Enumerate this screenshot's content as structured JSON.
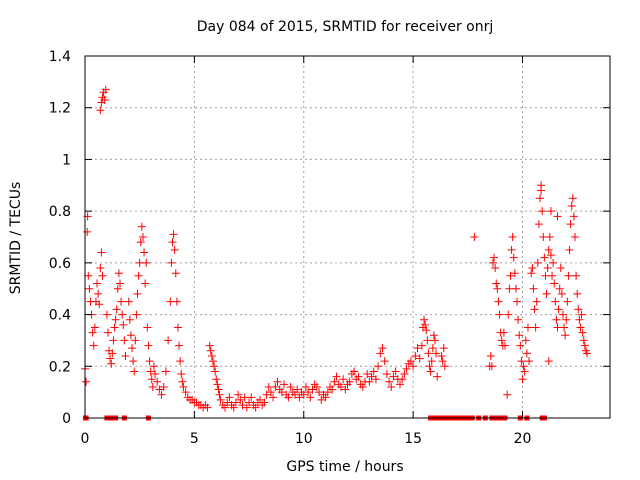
{
  "chart_data": {
    "type": "scatter",
    "title": "Day 084 of 2015, SRMTID for receiver onrj",
    "xlabel": "GPS time / hours",
    "ylabel": "SRMTID / TECUs",
    "xlim": [
      0,
      24
    ],
    "ylim": [
      0,
      1.4
    ],
    "x_ticks": [
      0,
      5,
      10,
      15,
      20
    ],
    "x_tick_labels": [
      "0",
      "5",
      "10",
      "15",
      "20"
    ],
    "y_ticks": [
      0,
      0.2,
      0.4,
      0.6,
      0.8,
      1.0,
      1.2,
      1.4
    ],
    "y_tick_labels": [
      "0",
      "0.2",
      "0.4",
      "0.6",
      "0.8",
      "1",
      "1.2",
      "1.4"
    ],
    "grid": true,
    "marker": "+",
    "color": "#ff0000",
    "series": [
      {
        "name": "SRMTID",
        "points": [
          [
            0.0,
            0.19
          ],
          [
            0.05,
            0.14
          ],
          [
            0.1,
            0.72
          ],
          [
            0.12,
            0.78
          ],
          [
            0.15,
            0.55
          ],
          [
            0.2,
            0.5
          ],
          [
            0.25,
            0.45
          ],
          [
            0.3,
            0.4
          ],
          [
            0.35,
            0.33
          ],
          [
            0.4,
            0.28
          ],
          [
            0.45,
            0.35
          ],
          [
            0.5,
            0.45
          ],
          [
            0.55,
            0.52
          ],
          [
            0.6,
            0.48
          ],
          [
            0.65,
            0.44
          ],
          [
            0.7,
            0.58
          ],
          [
            0.75,
            0.64
          ],
          [
            0.8,
            0.55
          ],
          [
            0.7,
            1.19
          ],
          [
            0.75,
            1.22
          ],
          [
            0.8,
            1.24
          ],
          [
            0.85,
            1.26
          ],
          [
            0.9,
            1.23
          ],
          [
            0.95,
            1.27
          ],
          [
            1.0,
            0.4
          ],
          [
            1.05,
            0.33
          ],
          [
            1.1,
            0.26
          ],
          [
            1.15,
            0.23
          ],
          [
            1.2,
            0.21
          ],
          [
            1.25,
            0.25
          ],
          [
            1.3,
            0.3
          ],
          [
            1.35,
            0.35
          ],
          [
            1.4,
            0.38
          ],
          [
            1.45,
            0.42
          ],
          [
            1.5,
            0.5
          ],
          [
            1.55,
            0.56
          ],
          [
            1.6,
            0.52
          ],
          [
            1.65,
            0.45
          ],
          [
            1.7,
            0.4
          ],
          [
            1.75,
            0.36
          ],
          [
            1.8,
            0.3
          ],
          [
            1.85,
            0.24
          ],
          [
            2.0,
            0.45
          ],
          [
            2.05,
            0.38
          ],
          [
            2.1,
            0.32
          ],
          [
            2.15,
            0.27
          ],
          [
            2.2,
            0.22
          ],
          [
            2.25,
            0.18
          ],
          [
            2.3,
            0.3
          ],
          [
            2.35,
            0.4
          ],
          [
            2.4,
            0.48
          ],
          [
            2.45,
            0.55
          ],
          [
            2.5,
            0.6
          ],
          [
            2.55,
            0.68
          ],
          [
            2.6,
            0.74
          ],
          [
            2.65,
            0.7
          ],
          [
            2.7,
            0.64
          ],
          [
            2.75,
            0.52
          ],
          [
            2.8,
            0.6
          ],
          [
            2.85,
            0.35
          ],
          [
            2.9,
            0.28
          ],
          [
            2.95,
            0.22
          ],
          [
            3.0,
            0.18
          ],
          [
            3.05,
            0.15
          ],
          [
            3.1,
            0.12
          ],
          [
            3.15,
            0.2
          ],
          [
            3.2,
            0.17
          ],
          [
            3.3,
            0.14
          ],
          [
            3.4,
            0.11
          ],
          [
            3.5,
            0.09
          ],
          [
            3.6,
            0.12
          ],
          [
            3.7,
            0.18
          ],
          [
            3.8,
            0.3
          ],
          [
            3.9,
            0.45
          ],
          [
            3.95,
            0.6
          ],
          [
            4.0,
            0.68
          ],
          [
            4.05,
            0.71
          ],
          [
            4.1,
            0.65
          ],
          [
            4.15,
            0.56
          ],
          [
            4.2,
            0.45
          ],
          [
            4.25,
            0.35
          ],
          [
            4.3,
            0.28
          ],
          [
            4.35,
            0.22
          ],
          [
            4.4,
            0.17
          ],
          [
            4.45,
            0.14
          ],
          [
            4.5,
            0.12
          ],
          [
            4.6,
            0.1
          ],
          [
            4.7,
            0.08
          ],
          [
            4.8,
            0.07
          ],
          [
            4.9,
            0.07
          ],
          [
            5.0,
            0.06
          ],
          [
            5.1,
            0.06
          ],
          [
            5.2,
            0.05
          ],
          [
            5.3,
            0.05
          ],
          [
            5.4,
            0.04
          ],
          [
            5.5,
            0.05
          ],
          [
            5.6,
            0.04
          ],
          [
            5.7,
            0.28
          ],
          [
            5.75,
            0.26
          ],
          [
            5.8,
            0.24
          ],
          [
            5.85,
            0.22
          ],
          [
            5.9,
            0.2
          ],
          [
            5.95,
            0.18
          ],
          [
            6.0,
            0.15
          ],
          [
            6.05,
            0.13
          ],
          [
            6.1,
            0.11
          ],
          [
            6.15,
            0.09
          ],
          [
            6.2,
            0.07
          ],
          [
            6.3,
            0.05
          ],
          [
            6.4,
            0.04
          ],
          [
            6.5,
            0.06
          ],
          [
            6.6,
            0.08
          ],
          [
            6.7,
            0.05
          ],
          [
            6.8,
            0.04
          ],
          [
            6.9,
            0.06
          ],
          [
            7.0,
            0.09
          ],
          [
            7.1,
            0.07
          ],
          [
            7.2,
            0.05
          ],
          [
            7.3,
            0.08
          ],
          [
            7.4,
            0.04
          ],
          [
            7.5,
            0.06
          ],
          [
            7.6,
            0.08
          ],
          [
            7.7,
            0.05
          ],
          [
            7.8,
            0.04
          ],
          [
            7.9,
            0.06
          ],
          [
            8.0,
            0.07
          ],
          [
            8.1,
            0.05
          ],
          [
            8.2,
            0.06
          ],
          [
            8.3,
            0.09
          ],
          [
            8.4,
            0.12
          ],
          [
            8.5,
            0.1
          ],
          [
            8.6,
            0.08
          ],
          [
            8.7,
            0.12
          ],
          [
            8.8,
            0.14
          ],
          [
            8.9,
            0.11
          ],
          [
            9.0,
            0.1
          ],
          [
            9.1,
            0.13
          ],
          [
            9.2,
            0.09
          ],
          [
            9.3,
            0.08
          ],
          [
            9.4,
            0.12
          ],
          [
            9.5,
            0.1
          ],
          [
            9.6,
            0.09
          ],
          [
            9.7,
            0.11
          ],
          [
            9.8,
            0.08
          ],
          [
            9.9,
            0.1
          ],
          [
            10.0,
            0.09
          ],
          [
            10.1,
            0.12
          ],
          [
            10.2,
            0.1
          ],
          [
            10.3,
            0.08
          ],
          [
            10.4,
            0.11
          ],
          [
            10.5,
            0.13
          ],
          [
            10.6,
            0.12
          ],
          [
            10.7,
            0.1
          ],
          [
            10.8,
            0.07
          ],
          [
            10.9,
            0.09
          ],
          [
            11.0,
            0.08
          ],
          [
            11.1,
            0.1
          ],
          [
            11.2,
            0.12
          ],
          [
            11.3,
            0.11
          ],
          [
            11.4,
            0.14
          ],
          [
            11.5,
            0.16
          ],
          [
            11.6,
            0.13
          ],
          [
            11.7,
            0.12
          ],
          [
            11.8,
            0.15
          ],
          [
            11.9,
            0.11
          ],
          [
            12.0,
            0.13
          ],
          [
            12.1,
            0.14
          ],
          [
            12.2,
            0.17
          ],
          [
            12.3,
            0.18
          ],
          [
            12.4,
            0.15
          ],
          [
            12.5,
            0.16
          ],
          [
            12.6,
            0.13
          ],
          [
            12.7,
            0.12
          ],
          [
            12.8,
            0.14
          ],
          [
            12.9,
            0.17
          ],
          [
            13.0,
            0.14
          ],
          [
            13.1,
            0.16
          ],
          [
            13.2,
            0.18
          ],
          [
            13.3,
            0.15
          ],
          [
            13.4,
            0.2
          ],
          [
            13.5,
            0.25
          ],
          [
            13.6,
            0.27
          ],
          [
            13.7,
            0.22
          ],
          [
            13.8,
            0.17
          ],
          [
            13.9,
            0.14
          ],
          [
            14.0,
            0.12
          ],
          [
            14.1,
            0.16
          ],
          [
            14.2,
            0.18
          ],
          [
            14.3,
            0.15
          ],
          [
            14.4,
            0.13
          ],
          [
            14.5,
            0.15
          ],
          [
            14.6,
            0.17
          ],
          [
            14.7,
            0.19
          ],
          [
            14.8,
            0.21
          ],
          [
            14.9,
            0.22
          ],
          [
            15.0,
            0.2
          ],
          [
            15.1,
            0.24
          ],
          [
            15.2,
            0.27
          ],
          [
            15.3,
            0.23
          ],
          [
            15.4,
            0.28
          ],
          [
            15.45,
            0.35
          ],
          [
            15.5,
            0.38
          ],
          [
            15.55,
            0.36
          ],
          [
            15.6,
            0.34
          ],
          [
            15.65,
            0.3
          ],
          [
            15.7,
            0.25
          ],
          [
            15.75,
            0.2
          ],
          [
            15.8,
            0.18
          ],
          [
            15.85,
            0.22
          ],
          [
            15.9,
            0.27
          ],
          [
            15.95,
            0.32
          ],
          [
            16.0,
            0.3
          ],
          [
            16.05,
            0.25
          ],
          [
            16.1,
            0.16
          ],
          [
            16.3,
            0.24
          ],
          [
            16.35,
            0.22
          ],
          [
            16.4,
            0.27
          ],
          [
            16.45,
            0.2
          ],
          [
            17.8,
            0.7
          ],
          [
            18.5,
            0.2
          ],
          [
            18.55,
            0.24
          ],
          [
            18.6,
            0.2
          ],
          [
            18.65,
            0.6
          ],
          [
            18.7,
            0.62
          ],
          [
            18.75,
            0.58
          ],
          [
            18.8,
            0.52
          ],
          [
            18.85,
            0.5
          ],
          [
            18.9,
            0.45
          ],
          [
            18.95,
            0.4
          ],
          [
            19.0,
            0.33
          ],
          [
            19.05,
            0.3
          ],
          [
            19.1,
            0.28
          ],
          [
            19.15,
            0.33
          ],
          [
            19.2,
            0.28
          ],
          [
            19.3,
            0.09
          ],
          [
            19.35,
            0.4
          ],
          [
            19.4,
            0.5
          ],
          [
            19.45,
            0.55
          ],
          [
            19.5,
            0.65
          ],
          [
            19.55,
            0.7
          ],
          [
            19.6,
            0.62
          ],
          [
            19.65,
            0.56
          ],
          [
            19.7,
            0.5
          ],
          [
            19.75,
            0.45
          ],
          [
            19.8,
            0.38
          ],
          [
            19.85,
            0.32
          ],
          [
            19.9,
            0.28
          ],
          [
            19.95,
            0.22
          ],
          [
            20.0,
            0.15
          ],
          [
            20.05,
            0.2
          ],
          [
            20.1,
            0.18
          ],
          [
            20.15,
            0.3
          ],
          [
            20.2,
            0.25
          ],
          [
            20.25,
            0.35
          ],
          [
            20.3,
            0.22
          ],
          [
            20.4,
            0.56
          ],
          [
            20.45,
            0.58
          ],
          [
            20.5,
            0.5
          ],
          [
            20.55,
            0.42
          ],
          [
            20.6,
            0.35
          ],
          [
            20.65,
            0.45
          ],
          [
            20.7,
            0.6
          ],
          [
            20.75,
            0.75
          ],
          [
            20.8,
            0.85
          ],
          [
            20.85,
            0.9
          ],
          [
            20.9,
            0.8
          ],
          [
            20.95,
            0.7
          ],
          [
            21.0,
            0.62
          ],
          [
            21.05,
            0.55
          ],
          [
            21.1,
            0.48
          ],
          [
            21.15,
            0.58
          ],
          [
            21.2,
            0.65
          ],
          [
            21.25,
            0.7
          ],
          [
            21.3,
            0.63
          ],
          [
            21.35,
            0.55
          ],
          [
            21.4,
            0.6
          ],
          [
            21.45,
            0.52
          ],
          [
            21.5,
            0.45
          ],
          [
            21.55,
            0.38
          ],
          [
            21.6,
            0.35
          ],
          [
            21.65,
            0.42
          ],
          [
            21.7,
            0.5
          ],
          [
            21.75,
            0.58
          ],
          [
            21.8,
            0.48
          ],
          [
            21.85,
            0.4
          ],
          [
            21.9,
            0.35
          ],
          [
            21.95,
            0.32
          ],
          [
            22.0,
            0.38
          ],
          [
            22.05,
            0.45
          ],
          [
            22.1,
            0.55
          ],
          [
            22.15,
            0.65
          ],
          [
            22.2,
            0.75
          ],
          [
            22.25,
            0.82
          ],
          [
            22.3,
            0.85
          ],
          [
            22.35,
            0.78
          ],
          [
            22.4,
            0.7
          ],
          [
            22.45,
            0.55
          ],
          [
            22.5,
            0.48
          ],
          [
            22.55,
            0.42
          ],
          [
            22.6,
            0.38
          ],
          [
            22.65,
            0.35
          ],
          [
            22.7,
            0.4
          ],
          [
            22.75,
            0.33
          ],
          [
            22.8,
            0.3
          ],
          [
            22.85,
            0.28
          ],
          [
            22.9,
            0.26
          ],
          [
            22.95,
            0.25
          ],
          [
            21.6,
            0.78
          ],
          [
            21.2,
            0.22
          ],
          [
            20.85,
            0.88
          ],
          [
            21.3,
            0.8
          ]
        ],
        "zero_points": [
          0.02,
          0.05,
          1.0,
          1.1,
          1.2,
          1.4,
          1.8,
          2.9,
          15.8,
          15.9,
          16.0,
          16.1,
          16.2,
          16.3,
          16.5,
          16.6,
          16.7,
          16.8,
          16.9,
          17.0,
          17.1,
          17.2,
          17.3,
          17.4,
          17.5,
          17.6,
          17.7,
          18.0,
          18.3,
          18.6,
          18.8,
          19.0,
          19.2,
          19.9,
          20.2,
          20.9,
          21.0
        ]
      }
    ]
  }
}
